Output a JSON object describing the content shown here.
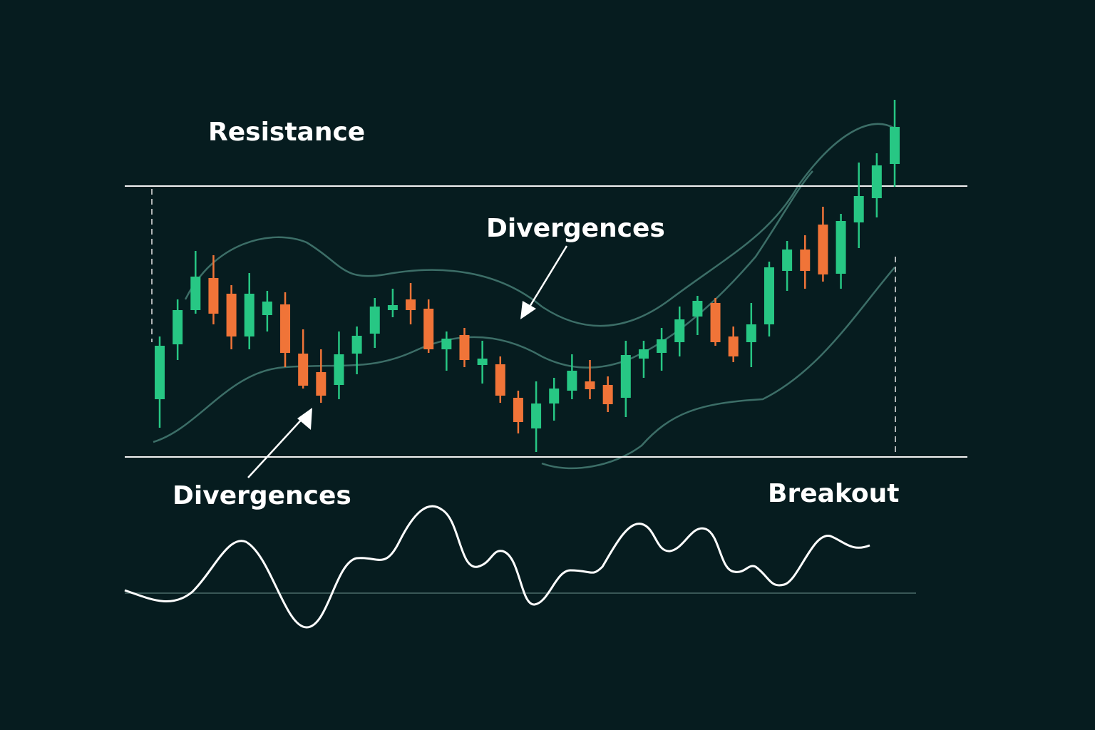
{
  "chart_data": {
    "type": "candlestick",
    "annotations": [
      "Resistance",
      "Divergences",
      "Divergences",
      "Breakout"
    ],
    "open": [
      100,
      177,
      225,
      270,
      248,
      188,
      218,
      233,
      164,
      138,
      120,
      164,
      192,
      225,
      240,
      227,
      170,
      190,
      148,
      149,
      102,
      59,
      94,
      112,
      125,
      120,
      102,
      157,
      165,
      180,
      216,
      235,
      188,
      180,
      205,
      280,
      310,
      345,
      276,
      348,
      382,
      430
    ],
    "high": [
      188,
      240,
      308,
      302,
      260,
      277,
      252,
      250,
      198,
      170,
      195,
      202,
      242,
      255,
      263,
      240,
      195,
      200,
      182,
      160,
      112,
      125,
      130,
      163,
      155,
      132,
      182,
      182,
      200,
      230,
      245,
      242,
      202,
      235,
      293,
      322,
      330,
      370,
      360,
      432,
      445,
      520
    ],
    "low": [
      60,
      155,
      220,
      205,
      170,
      170,
      195,
      145,
      115,
      95,
      100,
      135,
      172,
      215,
      205,
      165,
      140,
      145,
      122,
      95,
      52,
      26,
      70,
      100,
      100,
      82,
      75,
      130,
      140,
      160,
      190,
      175,
      152,
      145,
      188,
      252,
      255,
      265,
      255,
      312,
      355,
      398
    ],
    "close": [
      175,
      225,
      272,
      220,
      188,
      248,
      237,
      165,
      119,
      105,
      163,
      189,
      230,
      232,
      225,
      170,
      185,
      155,
      157,
      105,
      68,
      94,
      115,
      140,
      114,
      93,
      162,
      170,
      184,
      212,
      238,
      180,
      160,
      205,
      285,
      310,
      280,
      275,
      350,
      385,
      428,
      482
    ],
    "up_color": "#27c784",
    "down_color": "#f07438",
    "ylim": [
      0,
      520
    ]
  }
}
